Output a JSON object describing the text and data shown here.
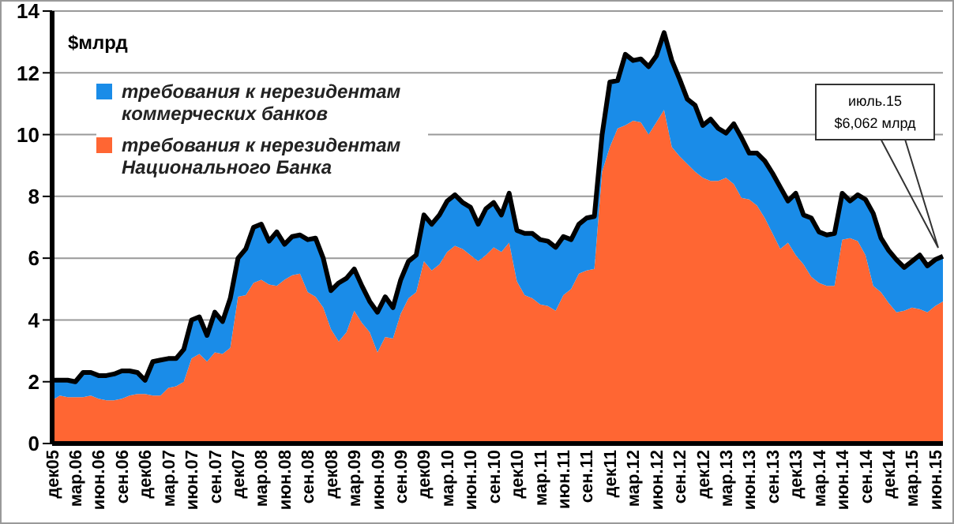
{
  "chart_data": {
    "type": "area",
    "stacked": true,
    "ylabel": "$млрд",
    "ylim": [
      0,
      14
    ],
    "yticks": [
      0,
      2,
      4,
      6,
      8,
      10,
      12,
      14
    ],
    "grid": "y",
    "legend": "top left",
    "categories": [
      "дек05",
      null,
      null,
      "мар.06",
      null,
      null,
      "июн.06",
      null,
      null,
      "сен.06",
      null,
      null,
      "дек06",
      null,
      null,
      "мар.07",
      null,
      null,
      "июн.07",
      null,
      null,
      "сен.07",
      null,
      null,
      "дек07",
      null,
      null,
      "мар.08",
      null,
      null,
      "июн.08",
      null,
      null,
      "сен.08",
      null,
      null,
      "дек08",
      null,
      null,
      "мар.09",
      null,
      null,
      "июн.09",
      null,
      null,
      "сен.09",
      null,
      null,
      "дек09",
      null,
      null,
      "мар.10",
      null,
      null,
      "июн.10",
      null,
      null,
      "сен.10",
      null,
      null,
      "дек10",
      null,
      null,
      "мар.11",
      null,
      null,
      "июн.11",
      null,
      null,
      "сен.11",
      null,
      null,
      "дек11",
      null,
      null,
      "мар.12",
      null,
      null,
      "июн.12",
      null,
      null,
      "сен.12",
      null,
      null,
      "дек12",
      null,
      null,
      "мар.13",
      null,
      null,
      "июн.13",
      null,
      null,
      "сен.13",
      null,
      null,
      "дек13",
      null,
      null,
      "мар.14",
      null,
      null,
      "июн.14",
      null,
      null,
      "сен.14",
      null,
      null,
      "дек14",
      null,
      null,
      "мар.15",
      null,
      null,
      "июн.15",
      null
    ],
    "series": [
      {
        "name": "требования к нерезидентам Национального Банка",
        "color": "#ff6633",
        "values": [
          1.4,
          1.55,
          1.5,
          1.5,
          1.5,
          1.55,
          1.45,
          1.4,
          1.4,
          1.45,
          1.55,
          1.6,
          1.6,
          1.55,
          1.55,
          1.8,
          1.85,
          2.0,
          2.75,
          2.9,
          2.65,
          2.95,
          2.9,
          3.1,
          4.75,
          4.8,
          5.2,
          5.3,
          5.15,
          5.1,
          5.3,
          5.45,
          5.5,
          4.9,
          4.75,
          4.4,
          3.7,
          3.3,
          3.6,
          4.3,
          3.9,
          3.6,
          2.95,
          3.45,
          3.4,
          4.2,
          4.7,
          4.9,
          5.9,
          5.6,
          5.8,
          6.2,
          6.4,
          6.3,
          6.1,
          5.9,
          6.1,
          6.35,
          6.2,
          6.5,
          5.25,
          4.8,
          4.7,
          4.5,
          4.45,
          4.3,
          4.8,
          5.0,
          5.5,
          5.6,
          5.65,
          8.8,
          9.6,
          10.2,
          10.3,
          10.45,
          10.4,
          10.0,
          10.4,
          10.8,
          9.6,
          9.3,
          9.05,
          8.8,
          8.6,
          8.5,
          8.5,
          8.6,
          8.4,
          7.95,
          7.9,
          7.7,
          7.3,
          6.8,
          6.3,
          6.5,
          6.1,
          5.8,
          5.4,
          5.2,
          5.1,
          5.1,
          6.6,
          6.65,
          6.55,
          6.1,
          5.1,
          4.9,
          4.55,
          4.25,
          4.3,
          4.4,
          4.35,
          4.25,
          4.45,
          4.6
        ]
      },
      {
        "name": "требования к нерезидентам коммерческих банков",
        "color": "#1a8ce8",
        "values": [
          0.65,
          0.5,
          0.55,
          0.5,
          0.8,
          0.75,
          0.75,
          0.8,
          0.85,
          0.9,
          0.8,
          0.7,
          0.45,
          1.1,
          1.15,
          0.95,
          0.9,
          1.05,
          1.25,
          1.2,
          0.85,
          1.3,
          1.05,
          1.6,
          1.25,
          1.5,
          1.8,
          1.8,
          1.4,
          1.75,
          1.15,
          1.25,
          1.25,
          1.7,
          1.9,
          1.6,
          1.25,
          1.9,
          1.75,
          1.35,
          1.2,
          1.0,
          1.3,
          1.3,
          1.0,
          1.1,
          1.2,
          1.2,
          1.5,
          1.5,
          1.6,
          1.65,
          1.65,
          1.5,
          1.55,
          1.2,
          1.5,
          1.45,
          1.2,
          1.6,
          1.65,
          2.0,
          2.1,
          2.1,
          2.1,
          2.05,
          1.9,
          1.6,
          1.6,
          1.7,
          1.7,
          1.2,
          2.1,
          1.55,
          2.3,
          1.95,
          2.05,
          2.2,
          2.15,
          2.5,
          2.8,
          2.5,
          2.1,
          2.15,
          1.7,
          2.0,
          1.7,
          1.45,
          1.95,
          1.95,
          1.5,
          1.7,
          1.85,
          1.95,
          2.0,
          1.35,
          2.0,
          1.6,
          1.9,
          1.65,
          1.65,
          1.7,
          1.5,
          1.2,
          1.5,
          1.8,
          2.35,
          1.75,
          1.7,
          1.7,
          1.4,
          1.5,
          1.75,
          1.5,
          1.5,
          1.46
        ]
      }
    ],
    "annotations": [
      "июль.15\n$6,062 млрд"
    ]
  }
}
